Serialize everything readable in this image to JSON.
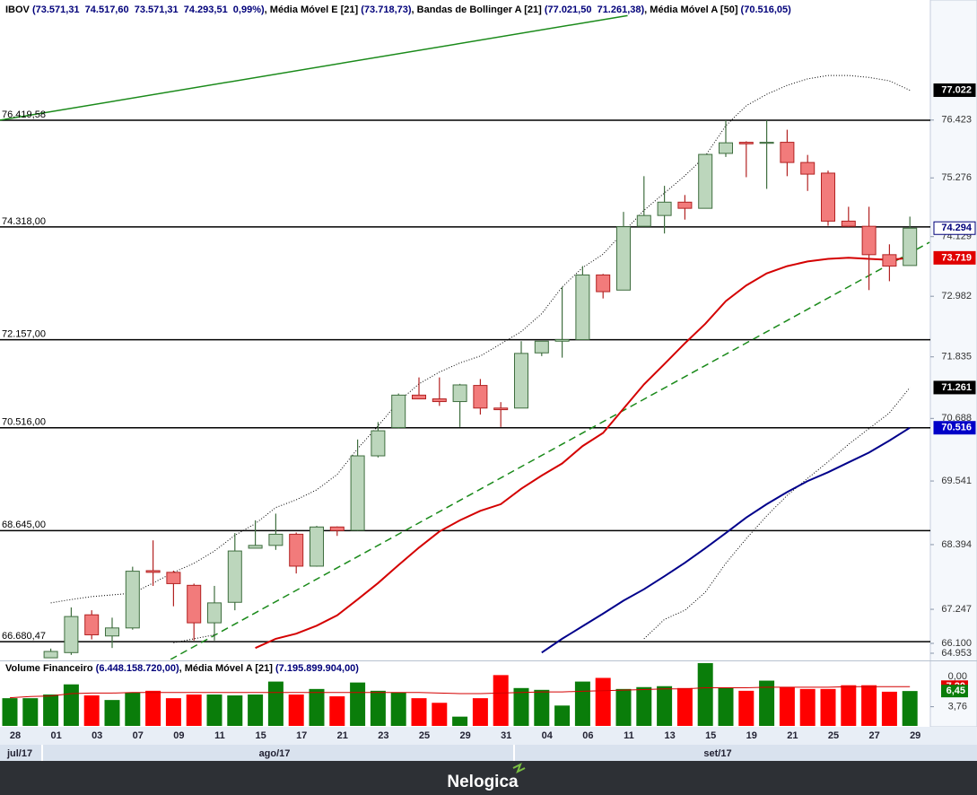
{
  "chart_data": {
    "type": "candlestick",
    "header": [
      {
        "text": "IBOV ",
        "color": "#000000"
      },
      {
        "text": "(73.571,31  74.517,60  73.571,31  74.293,51  0,99%)",
        "color": "#00007a"
      },
      {
        "text": ", Média Móvel E [21] ",
        "color": "#000000"
      },
      {
        "text": "(73.718,73)",
        "color": "#00007a"
      },
      {
        "text": ", Bandas de Bollinger A [21] ",
        "color": "#000000"
      },
      {
        "text": "(77.021,50  71.261,38)",
        "color": "#00007a"
      },
      {
        "text": ", Média Móvel A [50] ",
        "color": "#000000"
      },
      {
        "text": "(70.516,05)",
        "color": "#00007a"
      }
    ],
    "categories": [
      "28",
      null,
      "01",
      null,
      "03",
      null,
      "07",
      null,
      "09",
      null,
      "11",
      null,
      "15",
      null,
      "17",
      null,
      "21",
      null,
      "23",
      null,
      "25",
      null,
      "29",
      null,
      "31",
      null,
      "04",
      null,
      "06",
      null,
      "11",
      null,
      "13",
      null,
      "15",
      null,
      "19",
      null,
      "21",
      null,
      "25",
      null,
      "27",
      null,
      "29"
    ],
    "month_labels": [
      "jul/17",
      "ago/17",
      "set/17"
    ],
    "open": [
      null,
      null,
      66.4,
      66.49,
      67.15,
      66.78,
      66.92,
      67.93,
      67.9,
      67.67,
      67.01,
      67.37,
      68.33,
      68.38,
      68.58,
      68.01,
      68.71,
      68.65,
      70.0,
      70.52,
      71.12,
      71.05,
      71.0,
      71.3,
      70.88,
      70.88,
      71.91,
      72.13,
      72.16,
      73.39,
      73.1,
      74.33,
      74.54,
      74.8,
      74.68,
      75.76,
      75.98,
      75.96,
      75.98,
      75.58,
      75.37,
      74.43,
      74.33,
      73.78,
      73.57131
    ],
    "high": [
      null,
      null,
      66.56,
      67.28,
      67.23,
      67.1,
      68.0,
      68.47,
      67.93,
      67.7,
      67.66,
      68.6,
      68.83,
      68.95,
      68.61,
      68.73,
      68.72,
      70.3,
      70.62,
      71.15,
      71.45,
      71.45,
      71.33,
      71.42,
      70.99,
      72.13,
      72.13,
      73.16,
      73.56,
      73.41,
      74.61,
      75.31,
      75.12,
      74.94,
      75.74,
      76.42,
      76.0,
      76.42,
      76.23,
      75.73,
      75.42,
      74.71,
      74.71,
      73.98,
      74.5176
    ],
    "low": [
      null,
      null,
      66.4,
      66.45,
      66.72,
      66.57,
      66.89,
      67.66,
      67.3,
      66.7,
      66.7,
      67.23,
      68.33,
      68.3,
      67.88,
      68.0,
      68.55,
      68.64,
      69.97,
      70.5,
      71.05,
      70.92,
      70.53,
      70.76,
      70.53,
      70.88,
      71.85,
      71.82,
      72.16,
      72.94,
      73.1,
      74.33,
      74.19,
      74.46,
      74.68,
      75.69,
      75.29,
      75.06,
      75.31,
      75.02,
      74.34,
      74.32,
      73.1,
      73.27,
      73.57131
    ],
    "close": [
      null,
      null,
      66.51,
      67.12,
      66.8,
      66.92,
      67.92,
      67.9,
      67.7,
      67.01,
      67.36,
      68.28,
      68.38,
      68.58,
      68.01,
      68.71,
      68.645,
      70.0,
      70.46,
      71.12,
      71.05,
      71.0,
      71.31,
      70.88,
      70.85,
      71.9,
      72.13,
      72.16,
      73.39,
      73.07,
      74.32,
      74.54,
      74.8,
      74.68,
      75.74,
      75.97,
      75.95,
      75.98,
      75.58,
      75.35,
      74.43,
      74.33,
      73.78,
      73.56,
      74.29351
    ],
    "up_color": {
      "fill": "#bcd6bc",
      "stroke": "#3f6e3f"
    },
    "down_color": {
      "fill": "#f27b7b",
      "stroke": "#b22222"
    },
    "series": [
      {
        "color": "#d40000",
        "dash": "none",
        "width": 2,
        "values": [
          null,
          null,
          null,
          null,
          null,
          null,
          null,
          null,
          null,
          null,
          null,
          null,
          66.57,
          66.73,
          66.82,
          66.96,
          67.14,
          67.42,
          67.71,
          68.03,
          68.34,
          68.63,
          68.83,
          69.0,
          69.12,
          69.4,
          69.64,
          69.86,
          70.18,
          70.42,
          70.87,
          71.32,
          71.7,
          72.09,
          72.46,
          72.89,
          73.19,
          73.42,
          73.56,
          73.65,
          73.7,
          73.72,
          73.7,
          73.68,
          73.71873
        ]
      },
      {
        "color": "#000000",
        "dash": "1,2",
        "width": 1,
        "values": [
          null,
          null,
          67.36,
          67.42,
          67.47,
          67.5,
          67.53,
          67.71,
          67.9,
          68.06,
          68.28,
          68.56,
          68.77,
          69.06,
          69.2,
          69.38,
          69.66,
          70.13,
          70.55,
          71.0,
          71.33,
          71.55,
          71.72,
          71.85,
          72.08,
          72.31,
          72.65,
          73.16,
          73.53,
          73.79,
          74.22,
          74.64,
          74.98,
          75.32,
          75.71,
          76.31,
          76.71,
          76.94,
          77.12,
          77.25,
          77.32,
          77.32,
          77.28,
          77.21,
          77.0215
        ]
      },
      {
        "color": "#000000",
        "dash": "1,2",
        "width": 1,
        "values": [
          null,
          null,
          null,
          null,
          null,
          null,
          null,
          null,
          66.66,
          66.73,
          66.8,
          null,
          null,
          null,
          null,
          null,
          null,
          null,
          null,
          null,
          null,
          null,
          null,
          null,
          null,
          null,
          null,
          null,
          null,
          null,
          null,
          66.73,
          67.07,
          67.23,
          67.55,
          68.06,
          68.5,
          68.91,
          69.28,
          69.59,
          69.89,
          70.21,
          70.5,
          70.79,
          71.26138
        ]
      },
      {
        "color": "#00008b",
        "dash": "none",
        "width": 2,
        "values": [
          null,
          null,
          null,
          null,
          null,
          null,
          null,
          null,
          null,
          null,
          null,
          null,
          null,
          null,
          null,
          null,
          null,
          null,
          null,
          null,
          null,
          null,
          null,
          null,
          null,
          null,
          66.49,
          66.73,
          66.95,
          67.17,
          67.4,
          67.6,
          67.83,
          68.07,
          68.33,
          68.6,
          68.88,
          69.12,
          69.34,
          69.54,
          69.7,
          69.88,
          70.06,
          70.28,
          70.51605
        ]
      }
    ],
    "trendlines": [
      {
        "color": "#1a8a1a",
        "dash": "none",
        "x": [
          -0.5,
          30.2
        ],
        "y": [
          76.42,
          78.54
        ]
      },
      {
        "color": "#1a8a1a",
        "dash": "8,5",
        "x": [
          7.85,
          44.96
        ],
        "y": [
          66.37,
          74.02
        ]
      }
    ],
    "hlines": [
      {
        "value": 76.41958,
        "label": "76.419,58"
      },
      {
        "value": 74.318,
        "label": "74.318,00"
      },
      {
        "value": 72.157,
        "label": "72.157,00"
      },
      {
        "value": 70.516,
        "label": "70.516,00"
      },
      {
        "value": 68.645,
        "label": "68.645,00"
      },
      {
        "value": 66.68047,
        "label": "66.680,47"
      }
    ],
    "log_scale": true,
    "ylim": [
      66.37,
      78.86
    ],
    "yticks": [
      76.423,
      75.276,
      74.129,
      72.982,
      71.835,
      70.688,
      69.541,
      68.394,
      67.247,
      {
        "value": 66.1,
        "label": "66.100"
      },
      64.953
    ],
    "last_value_labels": [
      {
        "value": 77.022,
        "label": "77.022",
        "bg": "#000000",
        "fg": "#ffffff"
      },
      {
        "value": 74.294,
        "label": "74.294",
        "bg": "#ffffff",
        "fg": "#00007a"
      },
      {
        "value": 73.719,
        "label": "73.719",
        "bg": "#e00000",
        "fg": "#ffffff"
      },
      {
        "value": 71.261,
        "label": "71.261",
        "bg": "#000000",
        "fg": "#ffffff"
      },
      {
        "value": 70.516,
        "label": "70.516",
        "bg": "#0000c8",
        "fg": "#ffffff"
      }
    ],
    "volume": {
      "title": [
        {
          "text": "Volume Financeiro ",
          "color": "#000000"
        },
        {
          "text": "(6.448.158.720,00)",
          "color": "#00007a"
        },
        {
          "text": ", Média Móvel A [21] ",
          "color": "#000000"
        },
        {
          "text": "(7.195.899.904,00)",
          "color": "#00007a"
        }
      ],
      "values": [
        5.22,
        5.22,
        5.85,
        7.59,
        5.7,
        4.91,
        6.17,
        6.49,
        5.22,
        5.85,
        5.85,
        5.7,
        5.85,
        8.07,
        5.85,
        6.8,
        5.54,
        7.91,
        6.49,
        6.17,
        5.22,
        4.43,
        2.06,
        5.22,
        9.18,
        6.96,
        6.65,
        3.96,
        8.07,
        8.7,
        6.8,
        7.12,
        7.28,
        6.96,
        11.23,
        6.96,
        6.49,
        8.23,
        7.12,
        6.8,
        6.8,
        7.44,
        7.44,
        6.33,
        6.448
      ],
      "colors": [
        "#0a7d0a",
        "#0a7d0a",
        "#0a7d0a",
        "#0a7d0a",
        "#ff0000",
        "#0a7d0a",
        "#0a7d0a",
        "#ff0000",
        "#ff0000",
        "#ff0000",
        "#0a7d0a",
        "#0a7d0a",
        "#0a7d0a",
        "#0a7d0a",
        "#ff0000",
        "#0a7d0a",
        "#ff0000",
        "#0a7d0a",
        "#0a7d0a",
        "#0a7d0a",
        "#ff0000",
        "#ff0000",
        "#0a7d0a",
        "#ff0000",
        "#ff0000",
        "#0a7d0a",
        "#0a7d0a",
        "#0a7d0a",
        "#0a7d0a",
        "#ff0000",
        "#0a7d0a",
        "#0a7d0a",
        "#0a7d0a",
        "#ff0000",
        "#0a7d0a",
        "#0a7d0a",
        "#ff0000",
        "#0a7d0a",
        "#ff0000",
        "#ff0000",
        "#ff0000",
        "#ff0000",
        "#ff0000",
        "#ff0000",
        "#0a7d0a"
      ],
      "ma": {
        "color": "#d40000",
        "values": [
          5.3,
          5.5,
          5.6,
          6.0,
          6.1,
          6.1,
          6.2,
          6.2,
          6.2,
          6.2,
          6.2,
          6.2,
          6.2,
          6.2,
          6.2,
          6.2,
          6.2,
          6.2,
          6.2,
          6.2,
          6.2,
          6.1,
          6.0,
          6.0,
          6.1,
          6.2,
          6.3,
          6.3,
          6.4,
          6.5,
          6.6,
          6.7,
          6.8,
          6.8,
          7.0,
          7.0,
          7.0,
          7.1,
          7.1,
          7.1,
          7.1,
          7.2,
          7.2,
          7.2,
          7.196
        ]
      },
      "ylim": [
        0.47,
        11.39
      ],
      "yticks": [
        {
          "value": 3.76,
          "label": "3,76"
        }
      ],
      "top_label": "0,00",
      "last_value_labels": [
        {
          "value": 7.196,
          "label": "7,20",
          "bg": "#e00000",
          "fg": "#ffffff"
        },
        {
          "value": 6.448,
          "label": "6,45",
          "bg": "#0a7d0a",
          "fg": "#ffffff"
        }
      ]
    }
  },
  "footer": {
    "brand": "Nelogica"
  }
}
